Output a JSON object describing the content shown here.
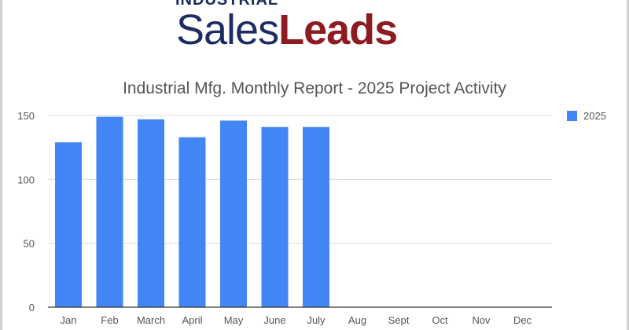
{
  "logo": {
    "top_text": "INDUSTRIAL",
    "word_sales": "Sales",
    "word_leads": "Leads"
  },
  "colors": {
    "bar": "#4285f4",
    "grid": "#d9d9d9",
    "axis": "#333333",
    "logo_navy": "#1d2d63",
    "logo_red": "#8e1a22"
  },
  "chart_data": {
    "type": "bar",
    "title": "Industrial Mfg. Monthly Report - 2025 Project Activity",
    "xlabel": "",
    "ylabel": "",
    "categories": [
      "Jan",
      "Feb",
      "March",
      "April",
      "May",
      "June",
      "July",
      "Aug",
      "Sept",
      "Oct",
      "Nov",
      "Dec"
    ],
    "series": [
      {
        "name": "2025",
        "values": [
          129,
          149,
          147,
          133,
          146,
          141,
          141,
          null,
          null,
          null,
          null,
          null
        ]
      }
    ],
    "ylim": [
      0,
      150
    ],
    "yticks": [
      0,
      50,
      100,
      150
    ],
    "grid": true,
    "legend_position": "right"
  }
}
